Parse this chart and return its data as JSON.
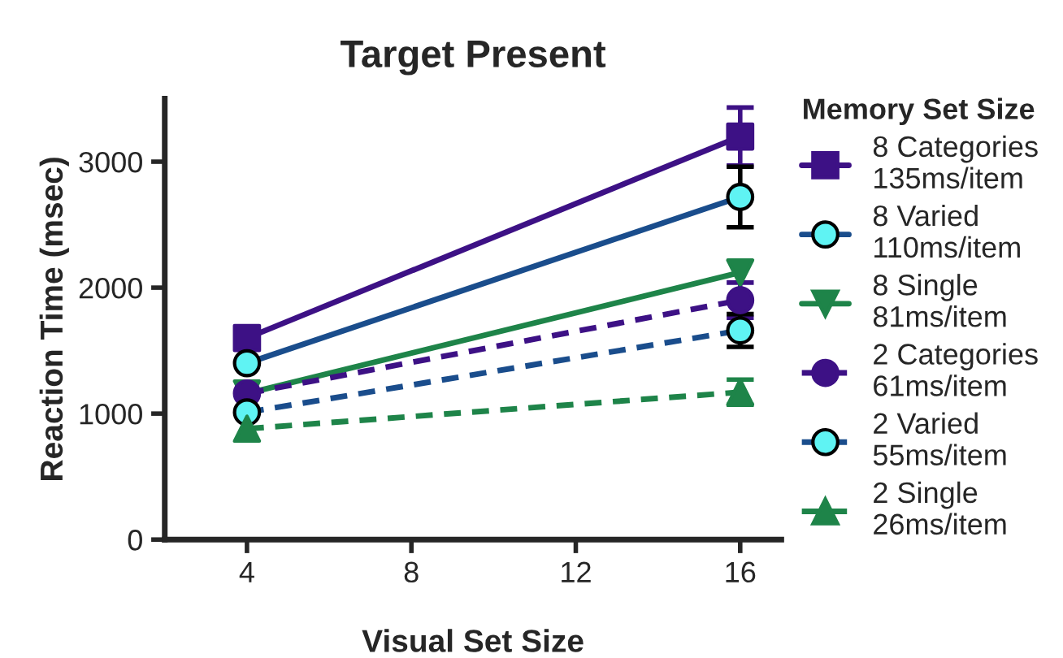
{
  "chart_data": {
    "type": "line",
    "title": "Target Present",
    "xlabel": "Visual Set Size",
    "ylabel": "Reaction Time (msec)",
    "legend_title": "Memory Set Size",
    "legend": "right",
    "grid": false,
    "x": [
      4,
      16
    ],
    "xlim": [
      2,
      17
    ],
    "xticks": [
      4,
      8,
      12,
      16
    ],
    "ylim": [
      0,
      3500
    ],
    "yticks": [
      0,
      1000,
      2000,
      3000
    ],
    "series": [
      {
        "name": "8 Categories\n135ms/item",
        "color": "#3d1185",
        "values": [
          1600,
          3200
        ],
        "errors": [
          null,
          230
        ],
        "marker": "square",
        "line_style": "solid"
      },
      {
        "name": "8 Varied\n110ms/item",
        "color": "#1a4d8c",
        "colors": [
          "#5ff3f3",
          "#5ff3f3"
        ],
        "values": [
          1400,
          2720
        ],
        "errors": [
          null,
          240
        ],
        "marker": "circle",
        "line_style": "solid"
      },
      {
        "name": "8 Single\n81ms/item",
        "color": "#1e8449",
        "values": [
          1160,
          2120
        ],
        "errors": [
          null,
          null
        ],
        "marker": "triangle_down",
        "line_style": "solid"
      },
      {
        "name": "2 Categories\n61ms/item",
        "color": "#3d1185",
        "values": [
          1160,
          1900
        ],
        "errors": [
          null,
          140
        ],
        "marker": "circle",
        "line_style": "dashed"
      },
      {
        "name": "2 Varied\n55ms/item",
        "color": "#1a4d8c",
        "colors": [
          "#5ff3f3",
          "#5ff3f3"
        ],
        "values": [
          1010,
          1660
        ],
        "errors": [
          null,
          130
        ],
        "marker": "circle",
        "line_style": "dashed"
      },
      {
        "name": "2 Single\n26ms/item",
        "color": "#1e8449",
        "values": [
          880,
          1170
        ],
        "errors": [
          null,
          100
        ],
        "marker": "triangle",
        "line_style": "dashed"
      }
    ]
  }
}
